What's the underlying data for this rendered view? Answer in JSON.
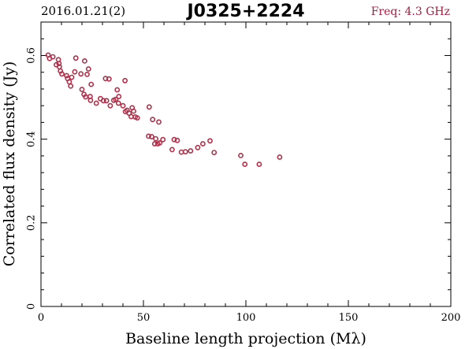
{
  "header": {
    "date": "2016.01.21(2)",
    "source": "J0325+2224",
    "freq": "Freq: 4.3 GHz"
  },
  "colors": {
    "marker": "#b0304a",
    "freq_text": "#a02040",
    "axis": "#000000"
  },
  "chart_data": {
    "type": "scatter",
    "title": "J0325+2224",
    "xlabel": "Baseline length projection (Mλ)",
    "ylabel": "Correlated flux density (Jy)",
    "xlim": [
      0,
      200
    ],
    "ylim": [
      0,
      0.68
    ],
    "xticks": [
      0,
      50,
      100,
      150,
      200
    ],
    "yticks": [
      0,
      0.2,
      0.4,
      0.6
    ],
    "xtick_labels": [
      "0",
      "50",
      "100",
      "150",
      "200"
    ],
    "ytick_labels": [
      "0",
      "0.2",
      "0.4",
      "0.6"
    ],
    "grid": false,
    "marker": "open-circle",
    "points": [
      [
        3.5,
        0.601
      ],
      [
        4.2,
        0.593
      ],
      [
        5.8,
        0.597
      ],
      [
        7.5,
        0.578
      ],
      [
        8.5,
        0.59
      ],
      [
        8.8,
        0.581
      ],
      [
        9.5,
        0.563
      ],
      [
        9.0,
        0.573
      ],
      [
        10.2,
        0.556
      ],
      [
        12.5,
        0.552
      ],
      [
        13.0,
        0.545
      ],
      [
        13.8,
        0.537
      ],
      [
        14.5,
        0.527
      ],
      [
        15.0,
        0.548
      ],
      [
        16.5,
        0.561
      ],
      [
        17.0,
        0.594
      ],
      [
        19.5,
        0.556
      ],
      [
        20.0,
        0.519
      ],
      [
        21.0,
        0.507
      ],
      [
        21.3,
        0.587
      ],
      [
        21.8,
        0.501
      ],
      [
        22.5,
        0.555
      ],
      [
        23.2,
        0.568
      ],
      [
        24.0,
        0.502
      ],
      [
        24.5,
        0.531
      ],
      [
        24.2,
        0.493
      ],
      [
        27.0,
        0.486
      ],
      [
        29.0,
        0.497
      ],
      [
        30.5,
        0.492
      ],
      [
        31.5,
        0.545
      ],
      [
        32.0,
        0.492
      ],
      [
        33.2,
        0.544
      ],
      [
        33.8,
        0.48
      ],
      [
        35.5,
        0.493
      ],
      [
        36.5,
        0.495
      ],
      [
        37.2,
        0.518
      ],
      [
        37.8,
        0.486
      ],
      [
        38.0,
        0.502
      ],
      [
        40.0,
        0.48
      ],
      [
        41.0,
        0.54
      ],
      [
        41.2,
        0.466
      ],
      [
        42.0,
        0.469
      ],
      [
        43.0,
        0.462
      ],
      [
        44.0,
        0.454
      ],
      [
        44.5,
        0.475
      ],
      [
        45.2,
        0.467
      ],
      [
        46.0,
        0.453
      ],
      [
        47.0,
        0.451
      ],
      [
        52.5,
        0.407
      ],
      [
        52.8,
        0.477
      ],
      [
        54.0,
        0.406
      ],
      [
        54.5,
        0.447
      ],
      [
        55.5,
        0.389
      ],
      [
        56.0,
        0.401
      ],
      [
        57.5,
        0.441
      ],
      [
        57.0,
        0.389
      ],
      [
        58.0,
        0.391
      ],
      [
        59.5,
        0.399
      ],
      [
        64.0,
        0.375
      ],
      [
        65.0,
        0.399
      ],
      [
        66.5,
        0.397
      ],
      [
        68.5,
        0.369
      ],
      [
        70.5,
        0.37
      ],
      [
        73.0,
        0.372
      ],
      [
        76.5,
        0.38
      ],
      [
        79.0,
        0.389
      ],
      [
        82.5,
        0.396
      ],
      [
        84.5,
        0.368
      ],
      [
        97.5,
        0.361
      ],
      [
        99.5,
        0.34
      ],
      [
        106.5,
        0.34
      ],
      [
        116.5,
        0.357
      ]
    ]
  }
}
